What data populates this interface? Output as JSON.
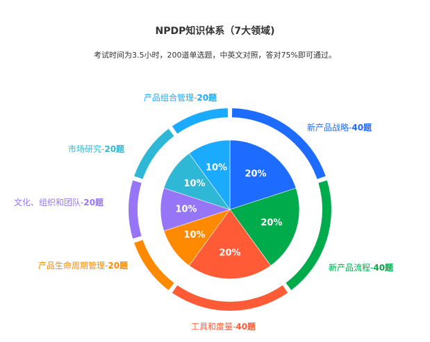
{
  "header": {
    "title": "NPDP知识体系（7大领域)",
    "subtitle": "考试时间为3.5小时，200道单选题，中英文对照，答对75%即可通过。"
  },
  "chart_data": {
    "type": "pie",
    "title": "NPDP知识体系（7大领域)",
    "subtitle": "考试时间为3.5小时，200道单选题，中英文对照，答对75%即可通过。",
    "start_angle": "12 o'clock, clockwise",
    "categories": [
      "新产品战略",
      "新产品流程",
      "工具和度量",
      "产品生命周期管理",
      "文化、组织和团队",
      "市场研究",
      "产品组合管理"
    ],
    "values": [
      40,
      40,
      40,
      20,
      20,
      20,
      20
    ],
    "percent_labels": [
      "20%",
      "20%",
      "20%",
      "10%",
      "10%",
      "10%",
      "10%"
    ],
    "unit": "题",
    "total": 200,
    "colors": [
      "#1E6CFF",
      "#00AB4B",
      "#FF5B37",
      "#FF8A00",
      "#9676F7",
      "#2EB8D6",
      "#1AABFF"
    ],
    "outer_labels": [
      "新产品战略-40题",
      "新产品流程-40题",
      "工具和度量-40题",
      "产品生命周期管理-20题",
      "文化、组织和团队-20题",
      "市场研究-20题",
      "产品组合管理-20题"
    ],
    "style": "pie with outer segmented ring"
  },
  "labels": [
    {
      "name": "新产品战略-",
      "count": "40题",
      "color": "#1E6CFF"
    },
    {
      "name": "新产品流程-",
      "count": "40题",
      "color": "#00AB4B"
    },
    {
      "name": "工具和度量-",
      "count": "40题",
      "color": "#FF5B37"
    },
    {
      "name": "产品生命周期管理-",
      "count": "20题",
      "color": "#FF8A00"
    },
    {
      "name": "文化、组织和团队-",
      "count": "20题",
      "color": "#9676F7"
    },
    {
      "name": "市场研究-",
      "count": "20题",
      "color": "#2EB8D6"
    },
    {
      "name": "产品组合管理-",
      "count": "20题",
      "color": "#1AABFF"
    }
  ]
}
